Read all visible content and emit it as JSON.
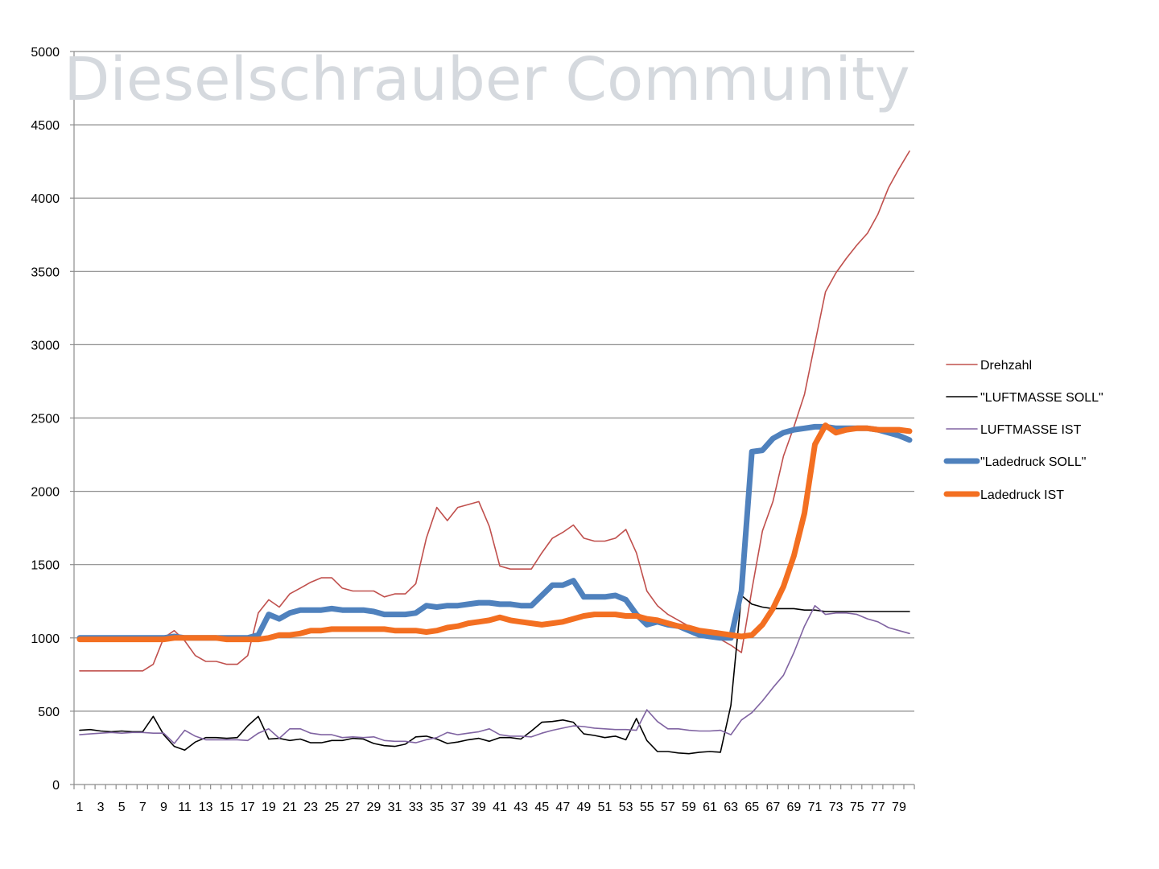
{
  "watermark": "Dieselschrauber Community",
  "chart_data": {
    "type": "line",
    "title": "",
    "xlabel": "",
    "ylabel": "",
    "ylim": [
      0,
      5000
    ],
    "yticks": [
      0,
      500,
      1000,
      1500,
      2000,
      2500,
      3000,
      3500,
      4000,
      4500,
      5000
    ],
    "xticks_shown": [
      "1",
      "3",
      "5",
      "7",
      "9",
      "11",
      "13",
      "15",
      "17",
      "19",
      "21",
      "23",
      "25",
      "27",
      "29",
      "31",
      "33",
      "35",
      "37",
      "39",
      "41",
      "43",
      "45",
      "47",
      "49",
      "51",
      "53",
      "55",
      "57",
      "59",
      "61",
      "63",
      "65",
      "67",
      "69",
      "71",
      "73",
      "75",
      "77",
      "79"
    ],
    "grid": "horizontal",
    "legend_position": "right",
    "x": [
      1,
      2,
      3,
      4,
      5,
      6,
      7,
      8,
      9,
      10,
      11,
      12,
      13,
      14,
      15,
      16,
      17,
      18,
      19,
      20,
      21,
      22,
      23,
      24,
      25,
      26,
      27,
      28,
      29,
      30,
      31,
      32,
      33,
      34,
      35,
      36,
      37,
      38,
      39,
      40,
      41,
      42,
      43,
      44,
      45,
      46,
      47,
      48,
      49,
      50,
      51,
      52,
      53,
      54,
      55,
      56,
      57,
      58,
      59,
      60,
      61,
      62,
      63,
      64,
      65,
      66,
      67,
      68,
      69,
      70,
      71,
      72,
      73,
      74,
      75,
      76,
      77,
      78,
      79,
      80
    ],
    "series": [
      {
        "name": "Drehzahl",
        "color": "#c0504d",
        "width": 1.6,
        "values": [
          775,
          775,
          775,
          775,
          775,
          775,
          775,
          820,
          1000,
          1050,
          980,
          880,
          840,
          840,
          820,
          820,
          880,
          1170,
          1260,
          1210,
          1300,
          1340,
          1380,
          1410,
          1410,
          1340,
          1320,
          1320,
          1320,
          1280,
          1300,
          1300,
          1370,
          1680,
          1890,
          1800,
          1890,
          1910,
          1930,
          1760,
          1490,
          1470,
          1470,
          1470,
          1580,
          1680,
          1720,
          1770,
          1680,
          1660,
          1660,
          1680,
          1740,
          1580,
          1320,
          1220,
          1160,
          1120,
          1080,
          1050,
          1020,
          990,
          950,
          900,
          1330,
          1730,
          1930,
          2240,
          2440,
          2660,
          3010,
          3360,
          3490,
          3590,
          3680,
          3760,
          3890,
          4070,
          4200,
          4320
        ]
      },
      {
        "name": "\"LUFTMASSE SOLL\"",
        "color": "#000000",
        "width": 1.6,
        "values": [
          370,
          375,
          365,
          360,
          365,
          360,
          360,
          465,
          340,
          260,
          235,
          290,
          320,
          320,
          315,
          320,
          400,
          465,
          310,
          315,
          300,
          310,
          285,
          285,
          300,
          300,
          315,
          310,
          280,
          265,
          260,
          275,
          325,
          330,
          310,
          280,
          290,
          305,
          315,
          295,
          320,
          320,
          310,
          365,
          425,
          430,
          440,
          425,
          345,
          335,
          320,
          330,
          305,
          450,
          300,
          225,
          225,
          215,
          210,
          220,
          225,
          220,
          540,
          1290,
          1230,
          1210,
          1200,
          1200,
          1200,
          1190,
          1190,
          1180,
          1180,
          1180,
          1180,
          1180,
          1180,
          1180,
          1180,
          1180
        ]
      },
      {
        "name": "LUFTMASSE IST",
        "color": "#8064a2",
        "width": 1.6,
        "values": [
          340,
          345,
          350,
          355,
          350,
          355,
          355,
          350,
          350,
          280,
          370,
          330,
          305,
          305,
          305,
          305,
          300,
          350,
          380,
          315,
          380,
          380,
          350,
          340,
          340,
          320,
          325,
          320,
          325,
          300,
          295,
          295,
          285,
          305,
          320,
          355,
          340,
          350,
          360,
          380,
          340,
          330,
          330,
          325,
          350,
          370,
          385,
          400,
          395,
          385,
          380,
          375,
          375,
          370,
          510,
          430,
          380,
          380,
          370,
          365,
          365,
          370,
          340,
          440,
          490,
          570,
          660,
          745,
          900,
          1080,
          1220,
          1160,
          1170,
          1170,
          1160,
          1130,
          1110,
          1070,
          1050,
          1030
        ]
      },
      {
        "name": "\"Ladedruck SOLL\"",
        "color": "#4f81bd",
        "width": 7,
        "values": [
          1000,
          1000,
          1000,
          1000,
          1000,
          1000,
          1000,
          1000,
          1000,
          1010,
          1000,
          1000,
          1000,
          1000,
          1000,
          1000,
          1000,
          1020,
          1160,
          1130,
          1170,
          1190,
          1190,
          1190,
          1200,
          1190,
          1190,
          1190,
          1180,
          1160,
          1160,
          1160,
          1170,
          1220,
          1210,
          1220,
          1220,
          1230,
          1240,
          1240,
          1230,
          1230,
          1220,
          1220,
          1290,
          1360,
          1360,
          1390,
          1280,
          1280,
          1280,
          1290,
          1260,
          1160,
          1090,
          1110,
          1090,
          1080,
          1050,
          1020,
          1010,
          1000,
          1000,
          1320,
          2270,
          2280,
          2360,
          2400,
          2420,
          2430,
          2440,
          2440,
          2430,
          2430,
          2430,
          2430,
          2420,
          2400,
          2380,
          2350
        ]
      },
      {
        "name": "Ladedruck IST",
        "color": "#f36f21",
        "width": 7,
        "values": [
          990,
          990,
          990,
          990,
          990,
          990,
          990,
          990,
          990,
          1000,
          1000,
          1000,
          1000,
          1000,
          990,
          990,
          990,
          990,
          1000,
          1020,
          1020,
          1030,
          1050,
          1050,
          1060,
          1060,
          1060,
          1060,
          1060,
          1060,
          1050,
          1050,
          1050,
          1040,
          1050,
          1070,
          1080,
          1100,
          1110,
          1120,
          1140,
          1120,
          1110,
          1100,
          1090,
          1100,
          1110,
          1130,
          1150,
          1160,
          1160,
          1160,
          1150,
          1150,
          1130,
          1120,
          1100,
          1080,
          1070,
          1050,
          1040,
          1030,
          1020,
          1010,
          1020,
          1090,
          1200,
          1350,
          1560,
          1850,
          2320,
          2450,
          2400,
          2420,
          2430,
          2430,
          2420,
          2420,
          2420,
          2410
        ]
      }
    ]
  }
}
